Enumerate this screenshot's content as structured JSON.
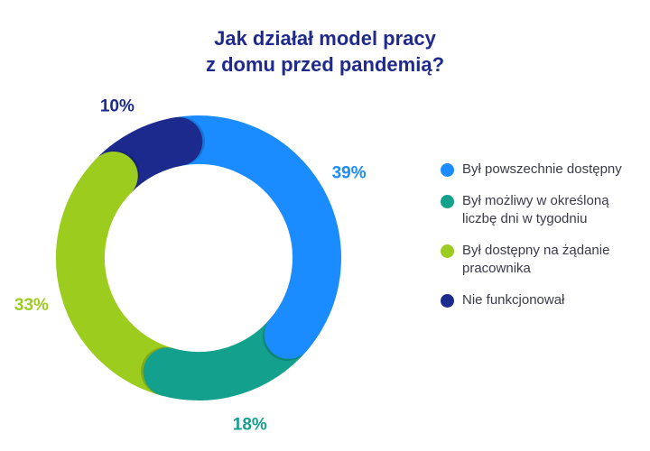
{
  "title": {
    "line1": "Jak działał model pracy",
    "line2": "z domu przed pandemią?"
  },
  "colors": {
    "title": "#1f2a8c",
    "blue": "#1a8cff",
    "teal": "#13a08c",
    "green": "#9ccc1e",
    "navy": "#1c2a8e"
  },
  "chart_data": {
    "type": "pie",
    "variant": "donut",
    "title": "Jak działał model pracy z domu przed pandemią?",
    "slices": [
      {
        "label": "Był powszechnie dostępny",
        "value": 39,
        "display": "39%",
        "color": "#1a8cff"
      },
      {
        "label": "Był możliwy w określoną liczbę dni w tygodniu",
        "value": 18,
        "display": "18%",
        "color": "#13a08c"
      },
      {
        "label": "Był dostępny na żądanie pracownika",
        "value": 33,
        "display": "33%",
        "color": "#9ccc1e"
      },
      {
        "label": "Nie funkcjonował",
        "value": 10,
        "display": "10%",
        "color": "#1c2a8e"
      }
    ],
    "legend_position": "right"
  },
  "legend": {
    "items": [
      {
        "text": "Był powszechnie dostępny",
        "color": "#1a8cff"
      },
      {
        "text": "Był możliwy w określoną liczbę dni w tygodniu",
        "color": "#13a08c"
      },
      {
        "text": "Był dostępny na żądanie pracownika",
        "color": "#9ccc1e"
      },
      {
        "text": "Nie funkcjonował",
        "color": "#1c2a8e"
      }
    ]
  }
}
